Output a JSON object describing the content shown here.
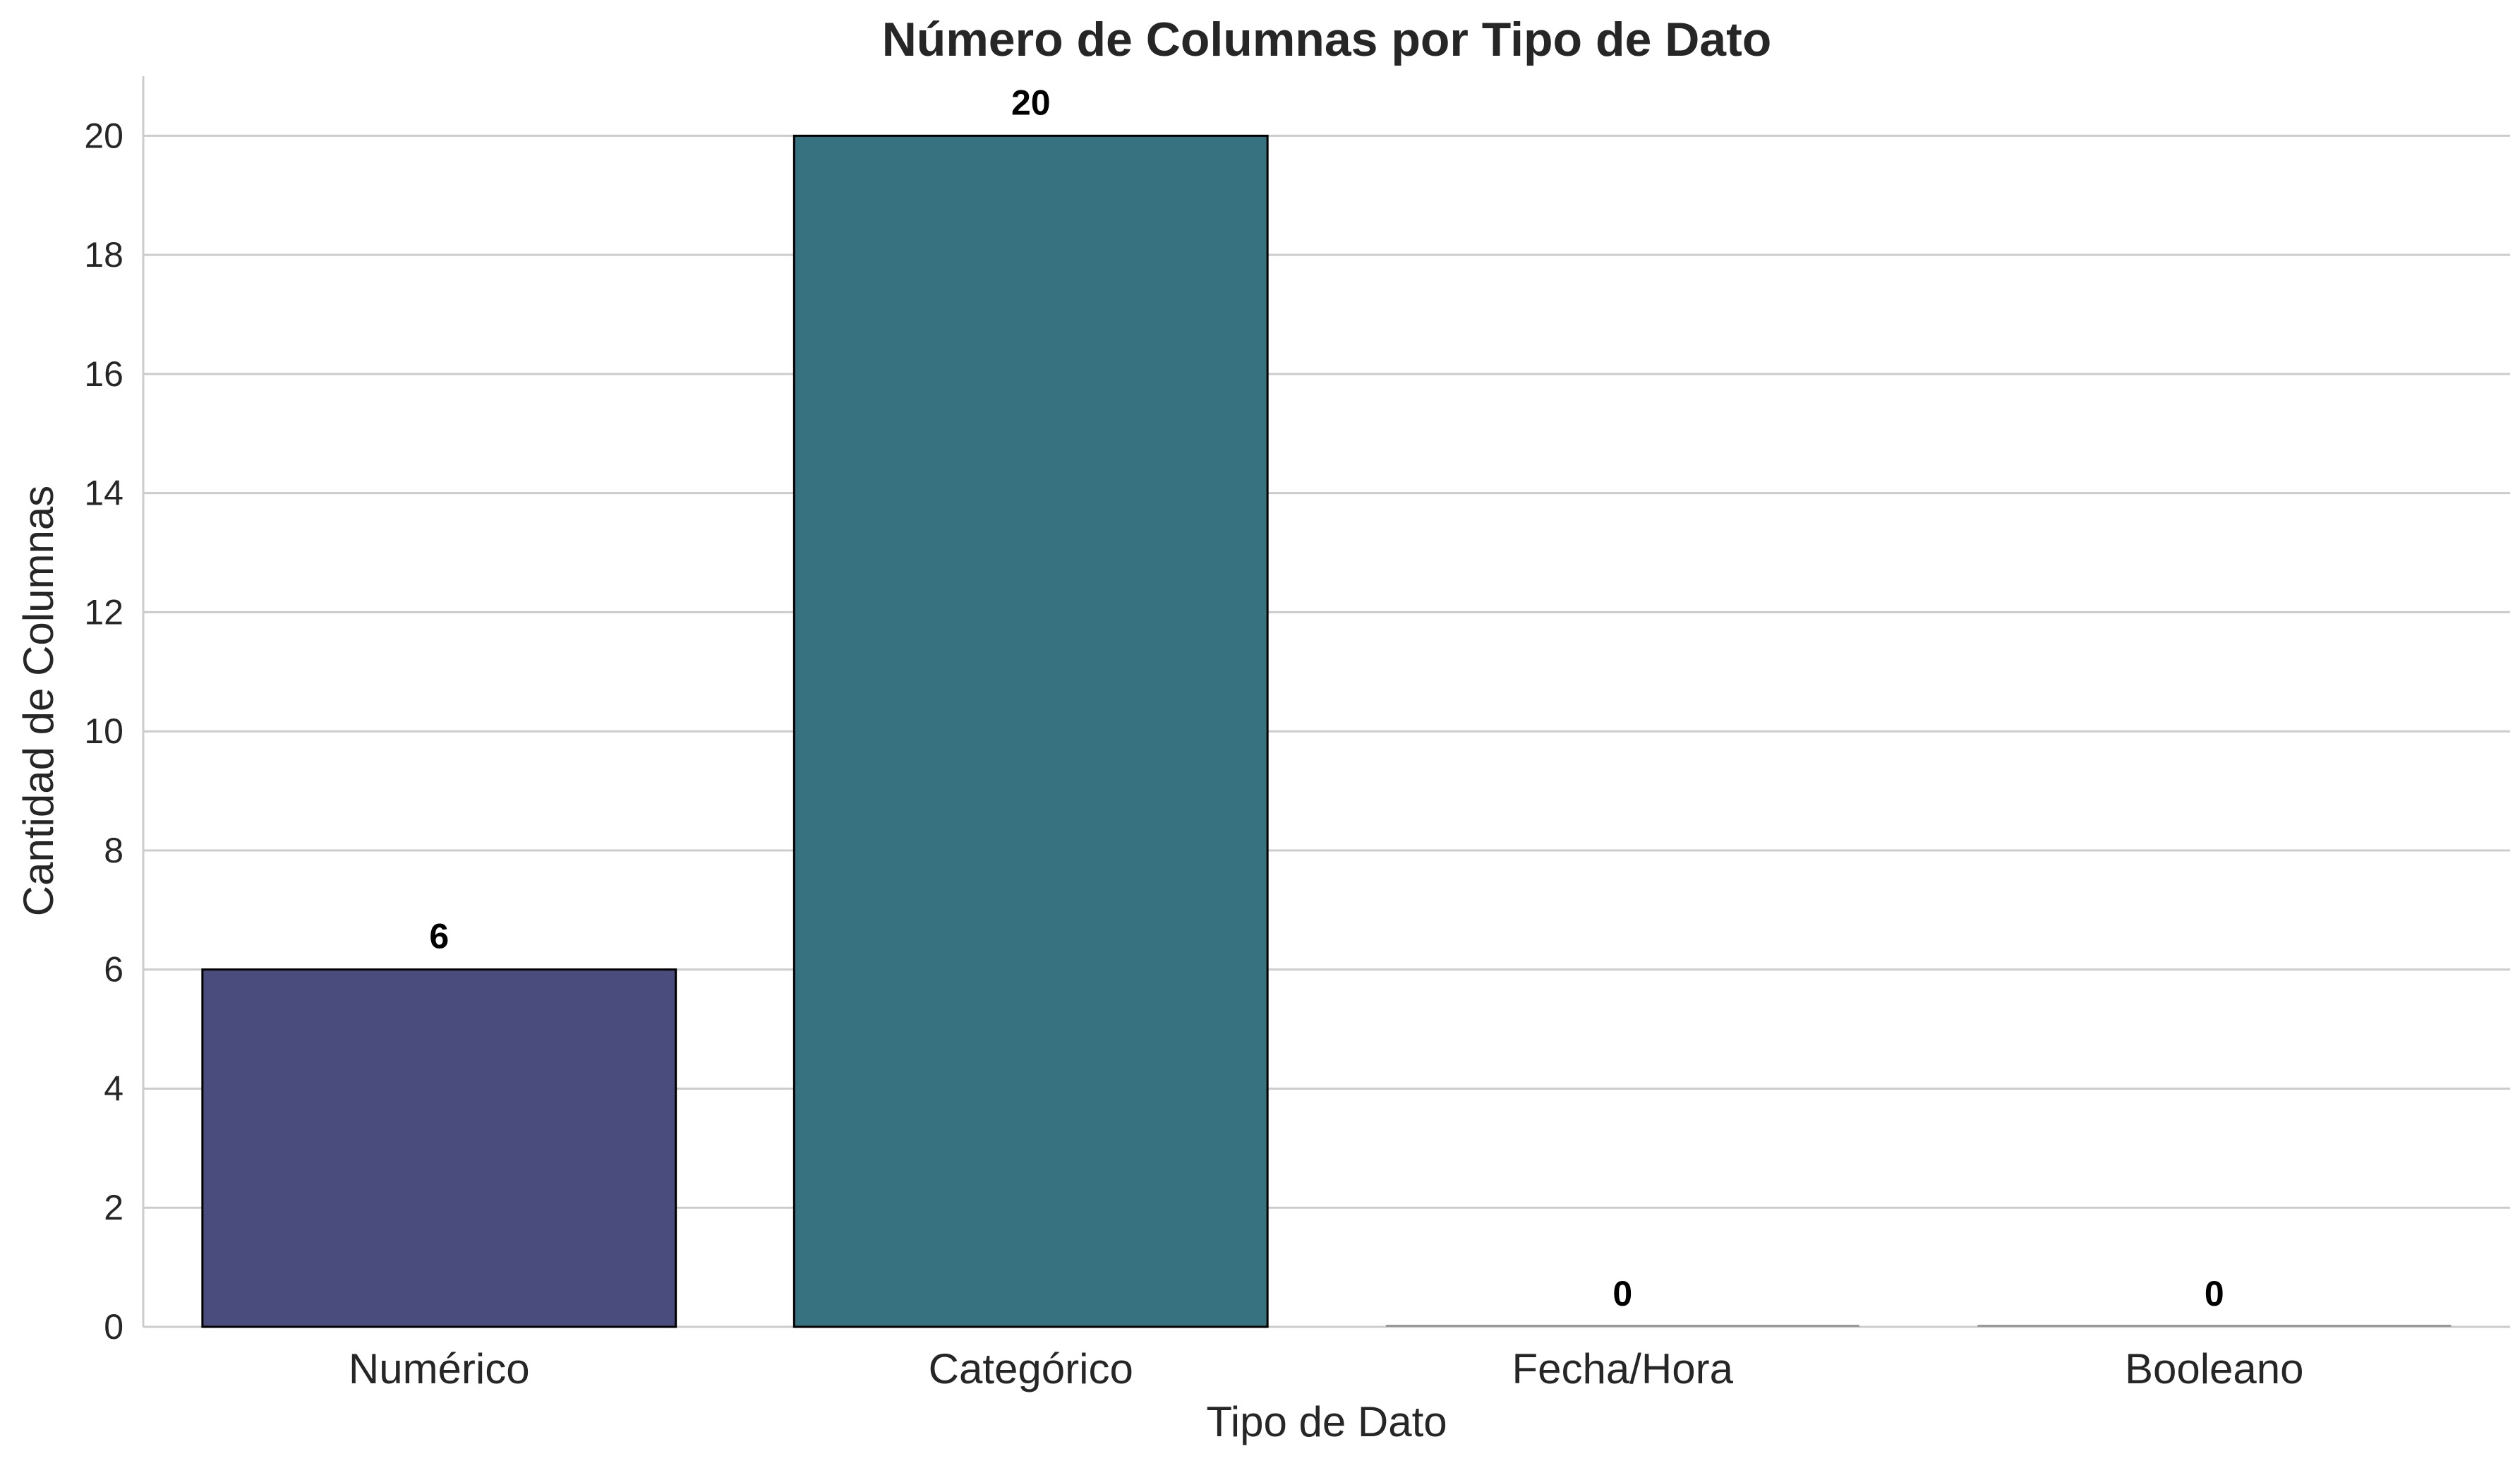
{
  "chart_data": {
    "type": "bar",
    "title": "Número de Columnas por Tipo de Dato",
    "xlabel": "Tipo de Dato",
    "ylabel": "Cantidad de Columnas",
    "categories": [
      "Numérico",
      "Categórico",
      "Fecha/Hora",
      "Booleano"
    ],
    "values": [
      6,
      20,
      0,
      0
    ],
    "data_labels": [
      "6",
      "20",
      "0",
      "0"
    ],
    "colors": [
      "#4a4c7d",
      "#367280",
      "#3b9080",
      "#5cb86e"
    ],
    "ylim": [
      0,
      21
    ],
    "yticks": [
      0,
      2,
      4,
      6,
      8,
      10,
      12,
      14,
      16,
      18,
      20
    ],
    "grid": "horizontal",
    "legend": "none"
  }
}
